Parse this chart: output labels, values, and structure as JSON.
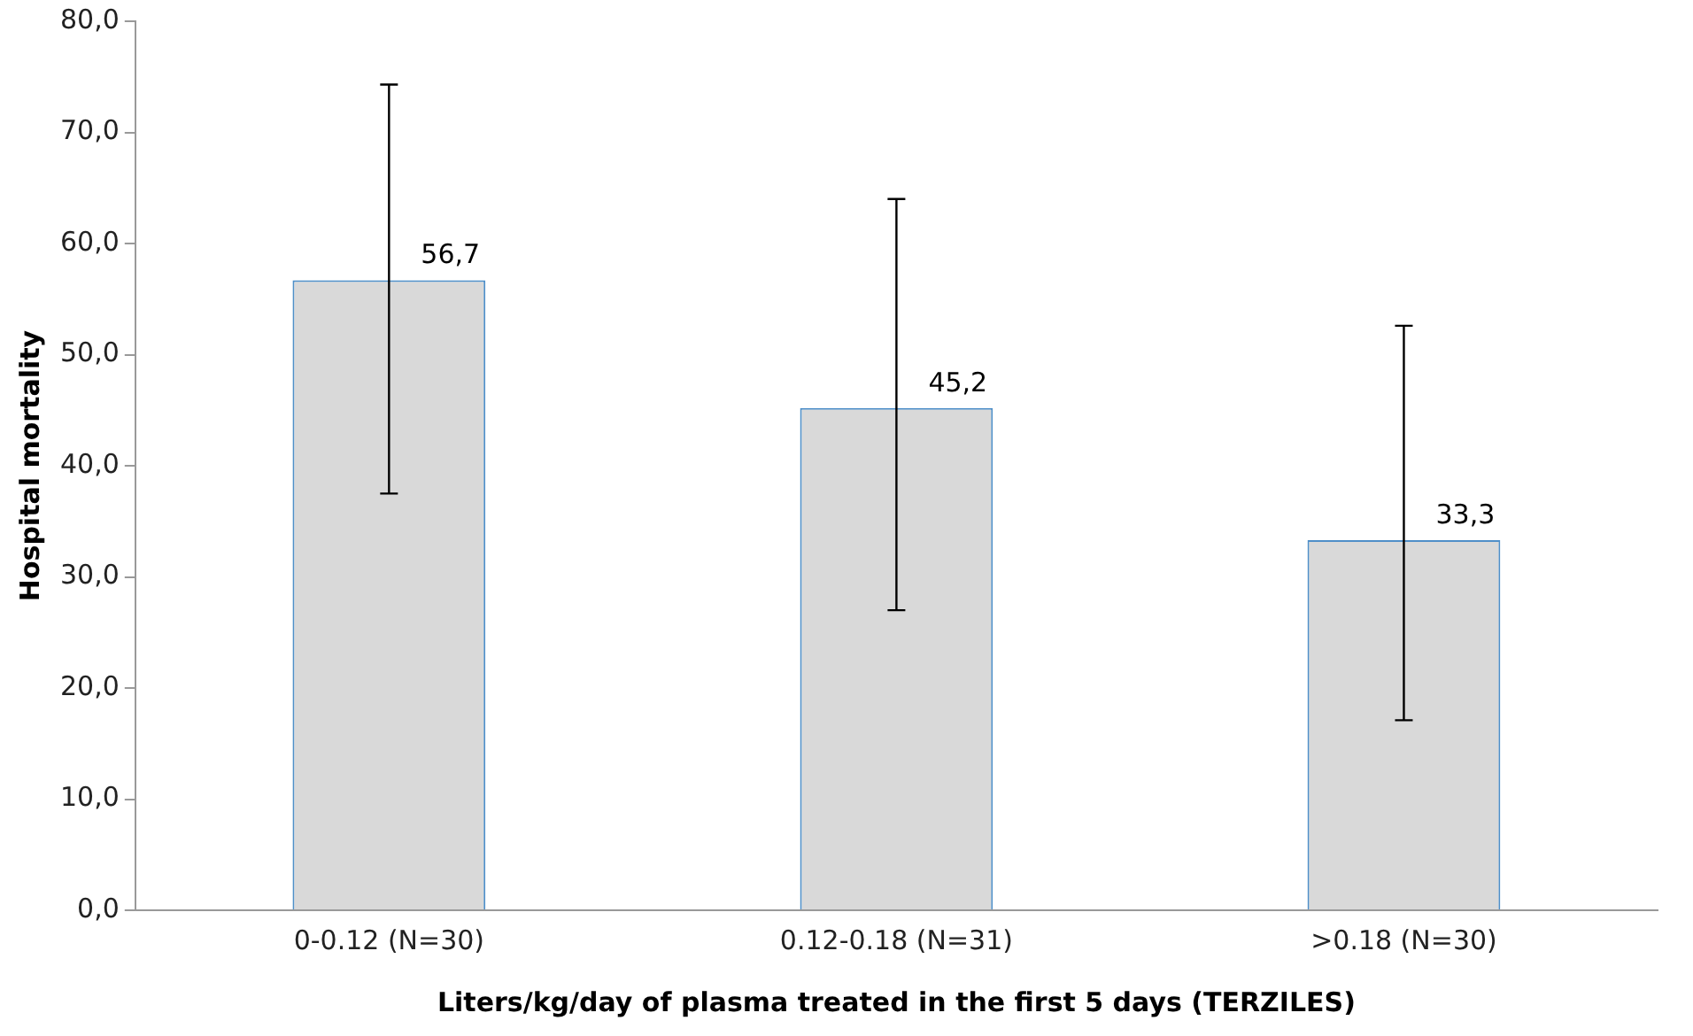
{
  "chart_data": {
    "type": "bar",
    "xlabel": "Liters/kg/day of plasma treated in the first 5 days (TERZILES)",
    "ylabel": "Hospital mortality",
    "categories": [
      "0-0.12 (N=30)",
      "0.12-0.18 (N=31)",
      ">0.18 (N=30)"
    ],
    "values": [
      56.7,
      45.2,
      33.3
    ],
    "errors": [
      [
        37.5,
        74.3
      ],
      [
        27.0,
        64.0
      ],
      [
        17.1,
        52.6
      ]
    ],
    "value_labels": [
      "56,7",
      "45,2",
      "33,3"
    ],
    "color": "#d9d9d9",
    "ylim": [
      0,
      80
    ],
    "yticks": [
      {
        "value": 0,
        "label": "0,0"
      },
      {
        "value": 10,
        "label": "10,0"
      },
      {
        "value": 20,
        "label": "20,0"
      },
      {
        "value": 30,
        "label": "30,0"
      },
      {
        "value": 40,
        "label": "40,0"
      },
      {
        "value": 50,
        "label": "50,0"
      },
      {
        "value": 60,
        "label": "60,0"
      },
      {
        "value": 70,
        "label": "70,0"
      },
      {
        "value": 80,
        "label": "80,0"
      }
    ],
    "grid": false,
    "legend": false
  }
}
